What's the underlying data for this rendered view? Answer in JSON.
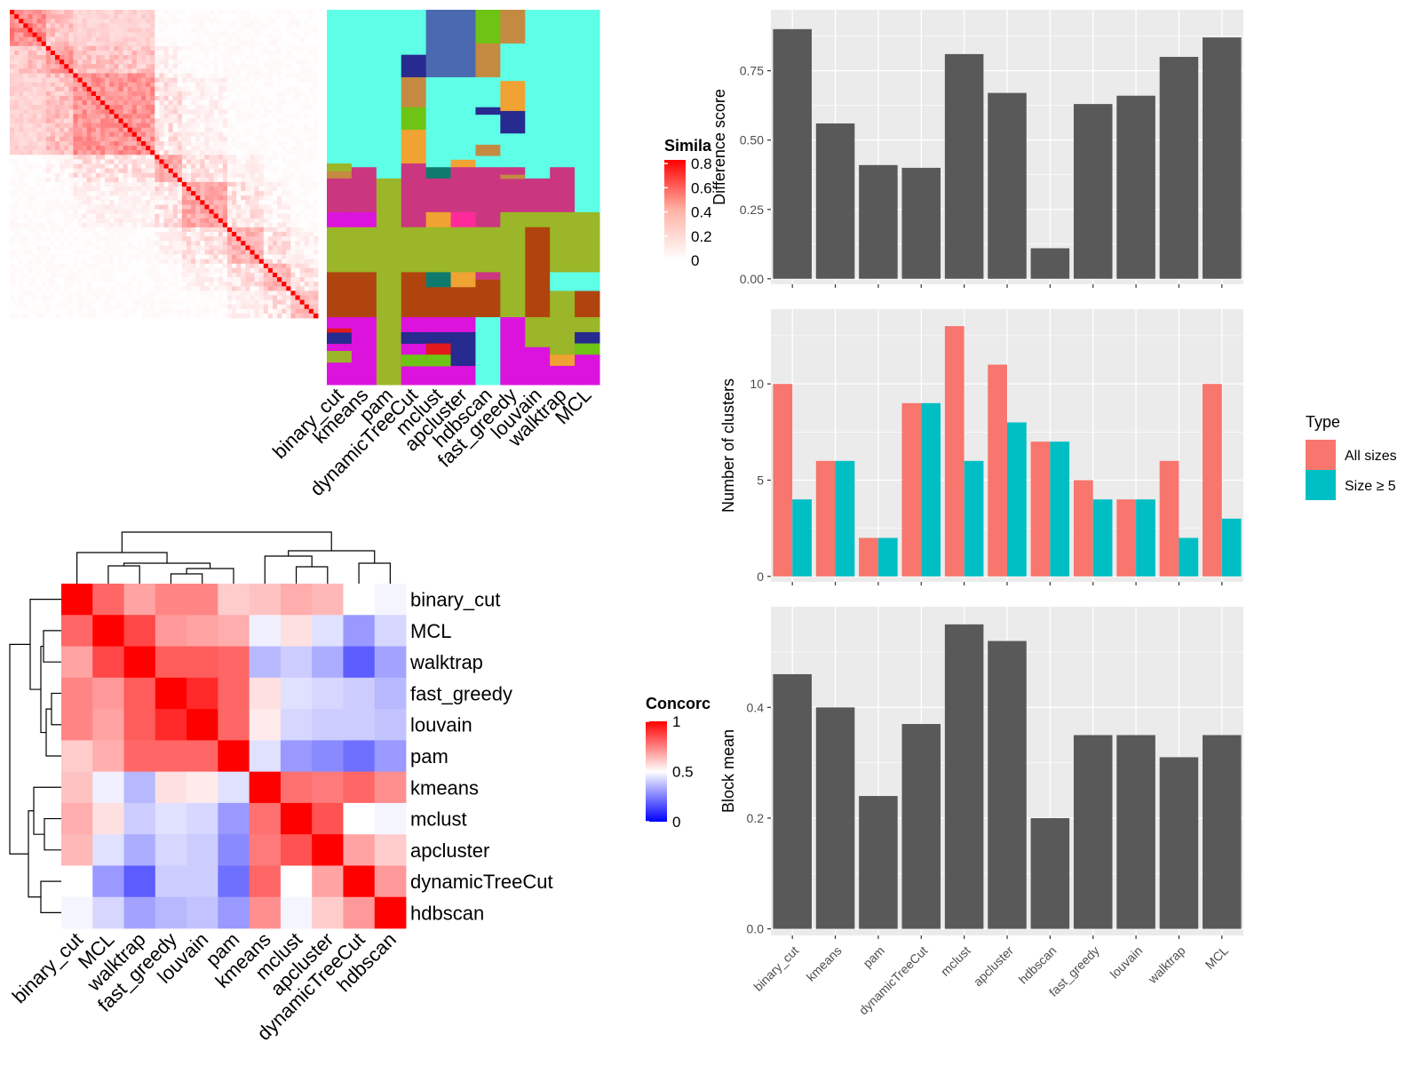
{
  "colors": {
    "panel_bg": "#ebebeb",
    "grid": "#ffffff",
    "bar_dark": "#595959",
    "all_sizes": "#f8766d",
    "size_ge5": "#00bfc4",
    "heat_high": "#ff0000",
    "heat_mid": "#ffffff",
    "heat_low": "#0000ff"
  },
  "similarity_legend": {
    "title": "Simila",
    "ticks": [
      "0.8",
      "0.6",
      "0.4",
      "0.2",
      "0"
    ]
  },
  "concordance_legend": {
    "title": "Concorc",
    "ticks": [
      "1",
      "0.5",
      "0"
    ]
  },
  "type_legend": {
    "title": "Type",
    "items": [
      "All sizes",
      "Size ≥ 5"
    ]
  },
  "cluster_columns": [
    "binary_cut",
    "kmeans",
    "pam",
    "dynamicTreeCut",
    "mclust",
    "apcluster",
    "hdbscan",
    "fast_greedy",
    "louvain",
    "walktrap",
    "MCL"
  ],
  "chart_data": [
    {
      "type": "heatmap",
      "title": "",
      "legend_title": "Simila",
      "ylim": [
        0,
        0.8
      ],
      "note": "term similarity matrix, diagonal blocks"
    },
    {
      "type": "heatmap",
      "title": "",
      "xlabels": [
        "binary_cut",
        "kmeans",
        "pam",
        "dynamicTreeCut",
        "mclust",
        "apcluster",
        "hdbscan",
        "fast_greedy",
        "louvain",
        "walktrap",
        "MCL"
      ]
    },
    {
      "type": "heatmap",
      "title": "",
      "legend_title": "Concorc",
      "rows": [
        "binary_cut",
        "MCL",
        "walktrap",
        "fast_greedy",
        "louvain",
        "pam",
        "kmeans",
        "mclust",
        "apcluster",
        "dynamicTreeCut",
        "hdbscan"
      ],
      "cols": [
        "binary_cut",
        "MCL",
        "walktrap",
        "fast_greedy",
        "louvain",
        "pam",
        "kmeans",
        "mclust",
        "apcluster",
        "dynamicTreeCut",
        "hdbscan"
      ],
      "values": [
        [
          1.0,
          0.8,
          0.68,
          0.74,
          0.74,
          0.6,
          0.62,
          0.66,
          0.64,
          0.5,
          0.48
        ],
        [
          0.8,
          1.0,
          0.86,
          0.7,
          0.68,
          0.66,
          0.47,
          0.56,
          0.44,
          0.3,
          0.42
        ],
        [
          0.68,
          0.86,
          1.0,
          0.82,
          0.82,
          0.8,
          0.36,
          0.4,
          0.34,
          0.18,
          0.32
        ],
        [
          0.74,
          0.7,
          0.82,
          1.0,
          0.92,
          0.8,
          0.56,
          0.44,
          0.42,
          0.4,
          0.36
        ],
        [
          0.74,
          0.68,
          0.82,
          0.92,
          1.0,
          0.8,
          0.54,
          0.42,
          0.4,
          0.4,
          0.38
        ],
        [
          0.6,
          0.66,
          0.8,
          0.8,
          0.8,
          1.0,
          0.44,
          0.3,
          0.27,
          0.22,
          0.3
        ],
        [
          0.62,
          0.47,
          0.36,
          0.56,
          0.54,
          0.44,
          1.0,
          0.78,
          0.76,
          0.8,
          0.72
        ],
        [
          0.66,
          0.56,
          0.4,
          0.44,
          0.42,
          0.3,
          0.78,
          1.0,
          0.84,
          0.5,
          0.48
        ],
        [
          0.64,
          0.44,
          0.34,
          0.42,
          0.4,
          0.27,
          0.76,
          0.84,
          1.0,
          0.68,
          0.6
        ],
        [
          0.5,
          0.3,
          0.18,
          0.4,
          0.4,
          0.22,
          0.8,
          0.5,
          0.68,
          1.0,
          0.7
        ],
        [
          0.48,
          0.42,
          0.32,
          0.36,
          0.38,
          0.3,
          0.72,
          0.48,
          0.6,
          0.7,
          1.0
        ]
      ]
    },
    {
      "type": "bar",
      "title": "",
      "categories": [
        "binary_cut",
        "kmeans",
        "pam",
        "dynamicTreeCut",
        "mclust",
        "apcluster",
        "hdbscan",
        "fast_greedy",
        "louvain",
        "walktrap",
        "MCL"
      ],
      "values": [
        0.9,
        0.56,
        0.41,
        0.4,
        0.81,
        0.67,
        0.11,
        0.63,
        0.66,
        0.8,
        0.87
      ],
      "xlabel": "",
      "ylabel": "Difference score",
      "ylim": [
        0,
        0.95
      ],
      "yticks": [
        "0.00",
        "0.25",
        "0.50",
        "0.75"
      ]
    },
    {
      "type": "bar",
      "title": "",
      "categories": [
        "binary_cut",
        "kmeans",
        "pam",
        "dynamicTreeCut",
        "mclust",
        "apcluster",
        "hdbscan",
        "fast_greedy",
        "louvain",
        "walktrap",
        "MCL"
      ],
      "series": [
        {
          "name": "All sizes",
          "values": [
            10,
            6,
            2,
            9,
            13,
            11,
            7,
            5,
            4,
            6,
            10
          ]
        },
        {
          "name": "Size ≥ 5",
          "values": [
            4,
            6,
            2,
            9,
            6,
            8,
            7,
            4,
            4,
            2,
            3
          ]
        }
      ],
      "xlabel": "",
      "ylabel": "Number of clusters",
      "ylim": [
        0,
        13.6
      ],
      "yticks": [
        "0",
        "5",
        "10"
      ]
    },
    {
      "type": "bar",
      "title": "",
      "categories": [
        "binary_cut",
        "kmeans",
        "pam",
        "dynamicTreeCut",
        "mclust",
        "apcluster",
        "hdbscan",
        "fast_greedy",
        "louvain",
        "walktrap",
        "MCL"
      ],
      "values": [
        0.46,
        0.4,
        0.24,
        0.37,
        0.55,
        0.52,
        0.2,
        0.35,
        0.35,
        0.31,
        0.35
      ],
      "xlabel": "",
      "ylabel": "Block mean",
      "ylim": [
        0,
        0.57
      ],
      "yticks": [
        "0.0",
        "0.2",
        "0.4"
      ]
    }
  ]
}
